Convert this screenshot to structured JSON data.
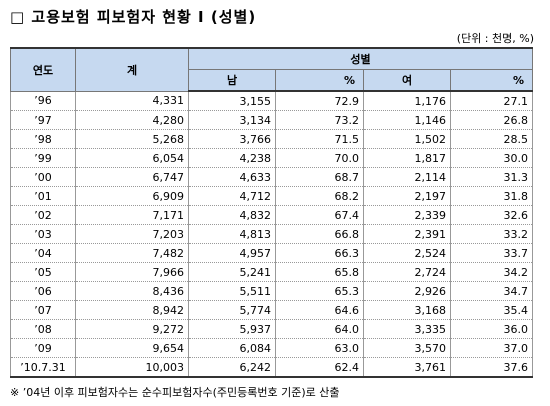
{
  "header": {
    "title": "□ 고용보험 피보험자 현황 I (성별)",
    "unit": "(단위 : 천명, %)"
  },
  "table": {
    "columns": {
      "year": "연도",
      "total": "계",
      "group": "성별",
      "male": "남",
      "male_pct": "%",
      "female": "여",
      "female_pct": "%"
    },
    "rows": [
      [
        "’96",
        "4,331",
        "3,155",
        "72.9",
        "1,176",
        "27.1"
      ],
      [
        "’97",
        "4,280",
        "3,134",
        "73.2",
        "1,146",
        "26.8"
      ],
      [
        "’98",
        "5,268",
        "3,766",
        "71.5",
        "1,502",
        "28.5"
      ],
      [
        "’99",
        "6,054",
        "4,238",
        "70.0",
        "1,817",
        "30.0"
      ],
      [
        "’00",
        "6,747",
        "4,633",
        "68.7",
        "2,114",
        "31.3"
      ],
      [
        "’01",
        "6,909",
        "4,712",
        "68.2",
        "2,197",
        "31.8"
      ],
      [
        "’02",
        "7,171",
        "4,832",
        "67.4",
        "2,339",
        "32.6"
      ],
      [
        "’03",
        "7,203",
        "4,813",
        "66.8",
        "2,391",
        "33.2"
      ],
      [
        "’04",
        "7,482",
        "4,957",
        "66.3",
        "2,524",
        "33.7"
      ],
      [
        "’05",
        "7,966",
        "5,241",
        "65.8",
        "2,724",
        "34.2"
      ],
      [
        "’06",
        "8,436",
        "5,511",
        "65.3",
        "2,926",
        "34.7"
      ],
      [
        "’07",
        "8,942",
        "5,774",
        "64.6",
        "3,168",
        "35.4"
      ],
      [
        "’08",
        "9,272",
        "5,937",
        "64.0",
        "3,335",
        "36.0"
      ],
      [
        "’09",
        "9,654",
        "6,084",
        "63.0",
        "3,570",
        "37.0"
      ],
      [
        "’10.7.31",
        "10,003",
        "6,242",
        "62.4",
        "3,761",
        "37.6"
      ]
    ]
  },
  "footnote": "※ ’04년 이후 피보험자수는 순수피보험자수(주민등록번호 기준)로 산출"
}
